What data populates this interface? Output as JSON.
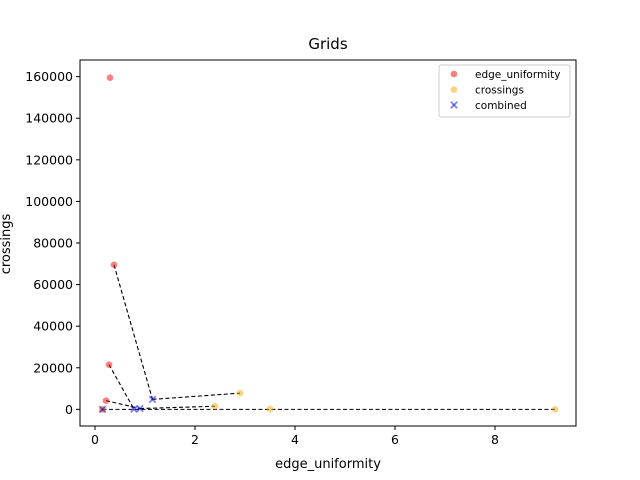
{
  "chart_data": {
    "type": "scatter",
    "title": "Grids",
    "xlabel": "edge_uniformity",
    "ylabel": "crossings",
    "xlim": [
      -0.3,
      9.62
    ],
    "ylim": [
      -8000,
      168000
    ],
    "xticks": [
      0,
      2,
      4,
      6,
      8
    ],
    "yticks": [
      0,
      20000,
      40000,
      60000,
      80000,
      100000,
      120000,
      140000,
      160000
    ],
    "grid": false,
    "legend_position": "top-right",
    "series": [
      {
        "name": "edge_uniformity",
        "marker": "circle",
        "color": "#ff0000",
        "points": [
          [
            0.15,
            0
          ],
          [
            0.22,
            4200
          ],
          [
            0.28,
            21500
          ],
          [
            0.38,
            69500
          ],
          [
            0.3,
            159500
          ]
        ]
      },
      {
        "name": "crossings",
        "marker": "circle",
        "color": "#ffa500",
        "points": [
          [
            0.15,
            0
          ],
          [
            2.4,
            1500
          ],
          [
            2.9,
            7800
          ],
          [
            3.5,
            200
          ],
          [
            9.2,
            0
          ]
        ]
      },
      {
        "name": "combined",
        "marker": "x",
        "color": "#0000ff",
        "points": [
          [
            0.15,
            0
          ],
          [
            0.78,
            100
          ],
          [
            0.9,
            400
          ],
          [
            1.15,
            4800
          ]
        ]
      }
    ],
    "lines": [
      [
        [
          0.22,
          4200
        ],
        [
          0.9,
          400
        ]
      ],
      [
        [
          0.28,
          21500
        ],
        [
          0.78,
          100
        ]
      ],
      [
        [
          0.38,
          69500
        ],
        [
          1.15,
          4800
        ]
      ],
      [
        [
          1.15,
          4800
        ],
        [
          2.9,
          7800
        ]
      ],
      [
        [
          0.9,
          400
        ],
        [
          2.4,
          1500
        ]
      ],
      [
        [
          0.15,
          0
        ],
        [
          9.2,
          0
        ]
      ]
    ]
  }
}
